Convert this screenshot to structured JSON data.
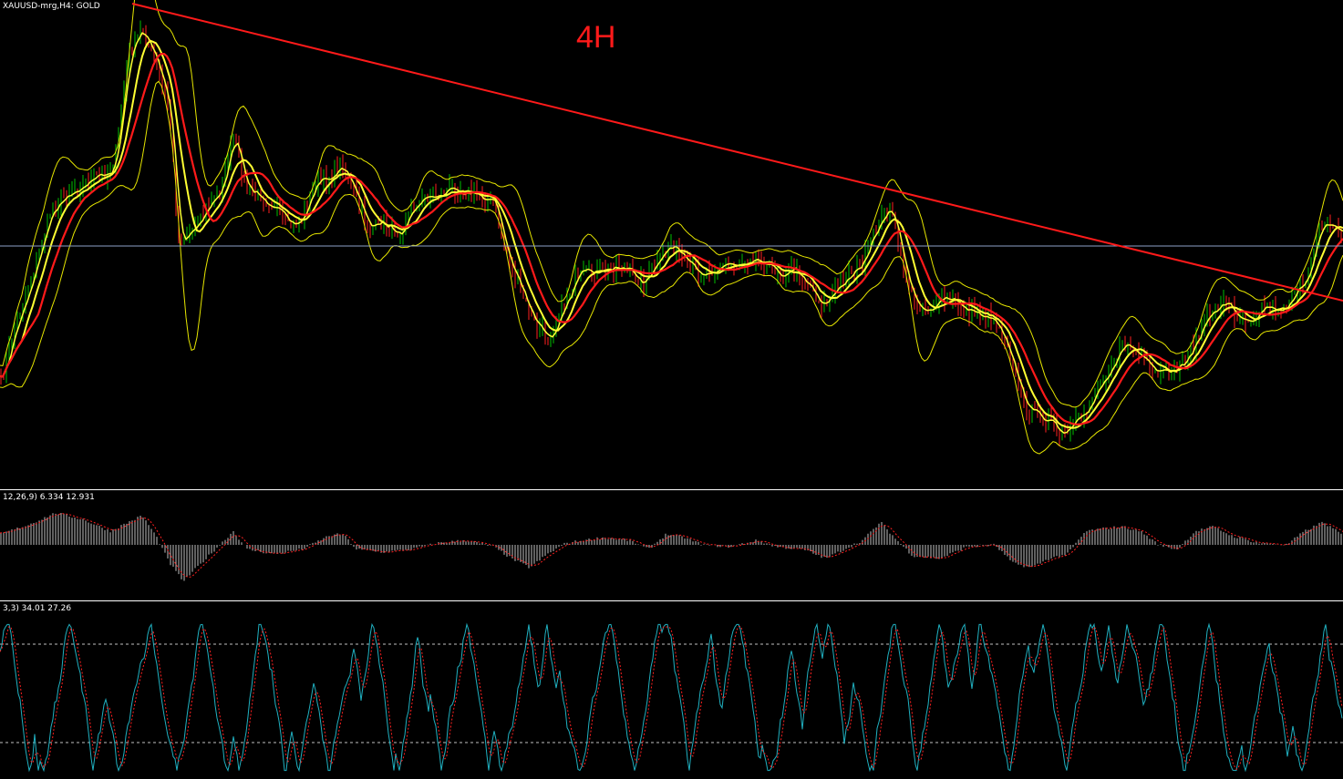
{
  "chart_data": [
    {
      "type": "line",
      "pane": "main",
      "symbol_label": "XAUUSD-mrg,H4:  GOLD",
      "annotation": "4H",
      "colors": {
        "candle_up": "#00c000",
        "candle_down": "#ff2020",
        "ma_slow": "#ff1a1a",
        "ma_fast": "#ffff33",
        "bands": "#e6e600",
        "trendline": "#ff1a1a",
        "hline": "#8ea0c8"
      },
      "price_path": [
        [
          0,
          420
        ],
        [
          15,
          360
        ],
        [
          35,
          300
        ],
        [
          55,
          230
        ],
        [
          75,
          210
        ],
        [
          95,
          200
        ],
        [
          115,
          190
        ],
        [
          125,
          180
        ],
        [
          140,
          60
        ],
        [
          155,
          30
        ],
        [
          170,
          70
        ],
        [
          185,
          120
        ],
        [
          195,
          265
        ],
        [
          210,
          250
        ],
        [
          225,
          230
        ],
        [
          240,
          210
        ],
        [
          255,
          150
        ],
        [
          270,
          210
        ],
        [
          285,
          215
        ],
        [
          300,
          225
        ],
        [
          315,
          250
        ],
        [
          330,
          240
        ],
        [
          345,
          200
        ],
        [
          360,
          195
        ],
        [
          375,
          180
        ],
        [
          390,
          220
        ],
        [
          405,
          250
        ],
        [
          420,
          245
        ],
        [
          435,
          255
        ],
        [
          450,
          230
        ],
        [
          465,
          215
        ],
        [
          480,
          215
        ],
        [
          495,
          205
        ],
        [
          510,
          210
        ],
        [
          525,
          215
        ],
        [
          540,
          220
        ],
        [
          555,
          280
        ],
        [
          570,
          320
        ],
        [
          585,
          355
        ],
        [
          600,
          370
        ],
        [
          615,
          340
        ],
        [
          630,
          305
        ],
        [
          645,
          300
        ],
        [
          660,
          300
        ],
        [
          675,
          290
        ],
        [
          690,
          300
        ],
        [
          705,
          310
        ],
        [
          720,
          290
        ],
        [
          735,
          265
        ],
        [
          750,
          290
        ],
        [
          765,
          300
        ],
        [
          780,
          295
        ],
        [
          795,
          290
        ],
        [
          810,
          290
        ],
        [
          825,
          280
        ],
        [
          840,
          290
        ],
        [
          855,
          300
        ],
        [
          870,
          295
        ],
        [
          885,
          310
        ],
        [
          900,
          335
        ],
        [
          915,
          320
        ],
        [
          930,
          300
        ],
        [
          945,
          290
        ],
        [
          960,
          250
        ],
        [
          975,
          225
        ],
        [
          985,
          270
        ],
        [
          1000,
          330
        ],
        [
          1015,
          340
        ],
        [
          1030,
          330
        ],
        [
          1045,
          330
        ],
        [
          1060,
          340
        ],
        [
          1075,
          345
        ],
        [
          1090,
          350
        ],
        [
          1105,
          380
        ],
        [
          1120,
          440
        ],
        [
          1135,
          455
        ],
        [
          1150,
          460
        ],
        [
          1160,
          480
        ],
        [
          1175,
          470
        ],
        [
          1190,
          450
        ],
        [
          1205,
          420
        ],
        [
          1220,
          395
        ],
        [
          1235,
          375
        ],
        [
          1250,
          395
        ],
        [
          1265,
          410
        ],
        [
          1280,
          410
        ],
        [
          1295,
          400
        ],
        [
          1310,
          375
        ],
        [
          1325,
          345
        ],
        [
          1340,
          330
        ],
        [
          1355,
          345
        ],
        [
          1370,
          350
        ],
        [
          1385,
          335
        ],
        [
          1400,
          340
        ],
        [
          1415,
          330
        ],
        [
          1430,
          310
        ],
        [
          1445,
          250
        ],
        [
          1460,
          245
        ],
        [
          1473,
          260
        ]
      ],
      "trendline": {
        "from": [
          145,
          4
        ],
        "to": [
          1473,
          330
        ]
      },
      "hline_y": 270
    },
    {
      "type": "bar",
      "pane": "macd",
      "label": "12,26,9) 6.334 12.931",
      "colors": {
        "hist": "#c0c0c0",
        "signal": "#ff2020"
      },
      "hist_path": [
        [
          0,
          12
        ],
        [
          30,
          22
        ],
        [
          60,
          35
        ],
        [
          90,
          28
        ],
        [
          120,
          15
        ],
        [
          140,
          25
        ],
        [
          155,
          32
        ],
        [
          170,
          10
        ],
        [
          185,
          -20
        ],
        [
          200,
          -40
        ],
        [
          215,
          -25
        ],
        [
          235,
          -5
        ],
        [
          255,
          15
        ],
        [
          270,
          -5
        ],
        [
          300,
          -10
        ],
        [
          330,
          -5
        ],
        [
          360,
          10
        ],
        [
          375,
          12
        ],
        [
          390,
          -5
        ],
        [
          420,
          -8
        ],
        [
          450,
          -5
        ],
        [
          480,
          2
        ],
        [
          510,
          5
        ],
        [
          540,
          -2
        ],
        [
          560,
          -15
        ],
        [
          580,
          -25
        ],
        [
          600,
          -10
        ],
        [
          620,
          2
        ],
        [
          640,
          5
        ],
        [
          660,
          8
        ],
        [
          690,
          5
        ],
        [
          710,
          -5
        ],
        [
          730,
          12
        ],
        [
          750,
          8
        ],
        [
          770,
          0
        ],
        [
          800,
          -2
        ],
        [
          830,
          5
        ],
        [
          850,
          -2
        ],
        [
          880,
          -5
        ],
        [
          905,
          -15
        ],
        [
          925,
          -5
        ],
        [
          945,
          5
        ],
        [
          965,
          25
        ],
        [
          980,
          8
        ],
        [
          1000,
          -12
        ],
        [
          1030,
          -15
        ],
        [
          1060,
          -2
        ],
        [
          1090,
          0
        ],
        [
          1110,
          -20
        ],
        [
          1130,
          -25
        ],
        [
          1150,
          -15
        ],
        [
          1170,
          -10
        ],
        [
          1190,
          15
        ],
        [
          1210,
          18
        ],
        [
          1230,
          20
        ],
        [
          1250,
          15
        ],
        [
          1270,
          0
        ],
        [
          1290,
          -5
        ],
        [
          1310,
          15
        ],
        [
          1330,
          20
        ],
        [
          1350,
          10
        ],
        [
          1380,
          2
        ],
        [
          1410,
          0
        ],
        [
          1430,
          15
        ],
        [
          1450,
          25
        ],
        [
          1473,
          10
        ]
      ]
    },
    {
      "type": "line",
      "pane": "stochastic",
      "label": "3,3) 34.01 27.26",
      "colors": {
        "main": "#20b0c0",
        "signal": "#ff2020",
        "levels": "#c0c0c0"
      },
      "levels": [
        80,
        20
      ],
      "ylim": [
        0,
        100
      ]
    }
  ]
}
